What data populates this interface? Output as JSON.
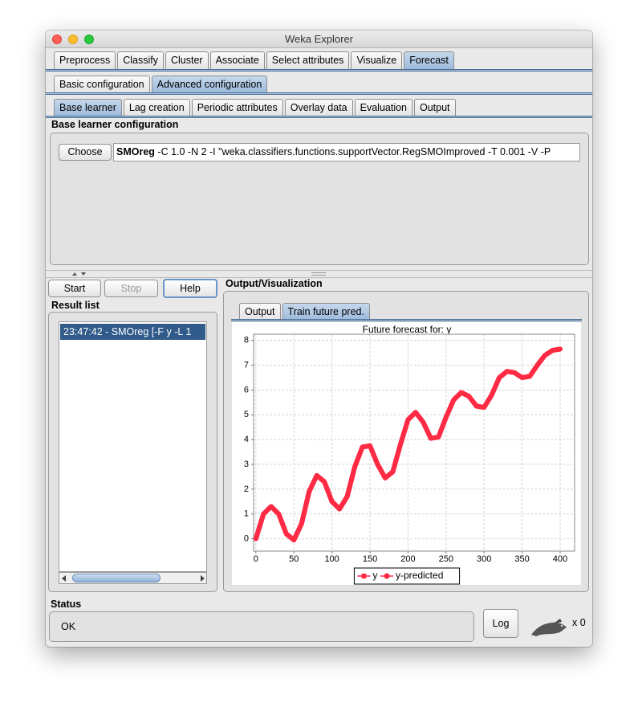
{
  "window": {
    "title": "Weka Explorer"
  },
  "tabs": {
    "items": [
      "Preprocess",
      "Classify",
      "Cluster",
      "Associate",
      "Select attributes",
      "Visualize",
      "Forecast"
    ],
    "active": 6
  },
  "config_tabs": {
    "items": [
      "Basic configuration",
      "Advanced configuration"
    ],
    "active": 1
  },
  "advanced_tabs": {
    "items": [
      "Base learner",
      "Lag creation",
      "Periodic attributes",
      "Overlay data",
      "Evaluation",
      "Output"
    ],
    "active": 0
  },
  "base_learner": {
    "title": "Base learner configuration",
    "button": "Choose",
    "scheme_name": "SMOreg",
    "scheme_options": "-C 1.0 -N 2 -I \"weka.classifiers.functions.supportVector.RegSMOImproved -T 0.001 -V -P"
  },
  "buttons": {
    "start": "Start",
    "stop": "Stop",
    "help": "Help"
  },
  "result_list": {
    "title": "Result list",
    "items": [
      "23:47:42 - SMOreg [-F y -L 1"
    ]
  },
  "output": {
    "title": "Output/Visualization",
    "tabs": [
      "Output",
      "Train future pred."
    ],
    "active": 1
  },
  "chart_data": {
    "type": "line",
    "title": "Future forecast for: y",
    "x": [
      0,
      10,
      20,
      30,
      40,
      50,
      60,
      70,
      80,
      90,
      100,
      110,
      120,
      130,
      140,
      150,
      160,
      170,
      180,
      190,
      200,
      210,
      220,
      230,
      240,
      250,
      260,
      270,
      280,
      290,
      300,
      310,
      320,
      330,
      340,
      350,
      360,
      370,
      380,
      390,
      400
    ],
    "series": [
      {
        "name": "y",
        "color": "#ff2a44",
        "values": [
          0.0,
          1.0,
          1.3,
          1.0,
          0.2,
          -0.05,
          0.6,
          1.9,
          2.55,
          2.3,
          1.5,
          1.2,
          1.7,
          2.9,
          3.7,
          3.75,
          3.0,
          2.45,
          2.7,
          3.8,
          4.8,
          5.1,
          4.7,
          4.05,
          4.1,
          4.9,
          5.6,
          5.9,
          5.75,
          5.35,
          5.3,
          5.8,
          6.5,
          6.75,
          6.7,
          6.5,
          6.55,
          7.0,
          7.4,
          7.6,
          7.65
        ]
      },
      {
        "name": "y-predicted",
        "color": "#ff2a44",
        "values": [
          0.0,
          1.0,
          1.3,
          1.0,
          0.2,
          -0.05,
          0.6,
          1.9,
          2.55,
          2.3,
          1.5,
          1.2,
          1.7,
          2.9,
          3.7,
          3.75,
          3.0,
          2.45,
          2.7,
          3.8,
          4.8,
          5.1,
          4.7,
          4.05,
          4.1,
          4.9,
          5.6,
          5.9,
          5.75,
          5.35,
          5.3,
          5.8,
          6.5,
          6.75,
          6.7,
          6.5,
          6.55,
          7.0,
          7.4,
          7.6,
          7.65
        ]
      }
    ],
    "xlim": [
      -3,
      419
    ],
    "xticks": [
      0,
      50,
      100,
      150,
      200,
      250,
      300,
      350,
      400
    ],
    "ylim": [
      -0.5,
      8.25
    ],
    "yticks": [
      0,
      1,
      2,
      3,
      4,
      5,
      6,
      7,
      8
    ],
    "grid": true
  },
  "status": {
    "title": "Status",
    "text": "OK",
    "button": "Log",
    "counter": "x 0"
  }
}
